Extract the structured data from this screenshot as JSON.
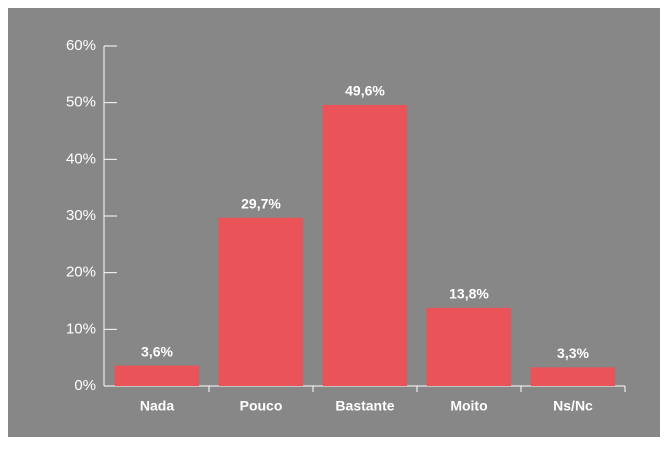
{
  "chart_data": {
    "type": "bar",
    "categories": [
      "Nada",
      "Pouco",
      "Bastante",
      "Moito",
      "Ns/Nc"
    ],
    "values": [
      3.6,
      29.7,
      49.6,
      13.8,
      3.3
    ],
    "value_labels": [
      "3,6%",
      "29,7%",
      "49,6%",
      "13,8%",
      "3,3%"
    ],
    "color": "#ea5459",
    "ylim": [
      0,
      60
    ],
    "yticks": [
      {
        "value": 0,
        "label": "0%"
      },
      {
        "value": 10,
        "label": "10%"
      },
      {
        "value": 20,
        "label": "20%"
      },
      {
        "value": 30,
        "label": "30%"
      },
      {
        "value": 40,
        "label": "40%"
      },
      {
        "value": 50,
        "label": "50%"
      },
      {
        "value": 60,
        "label": "60%"
      }
    ]
  }
}
